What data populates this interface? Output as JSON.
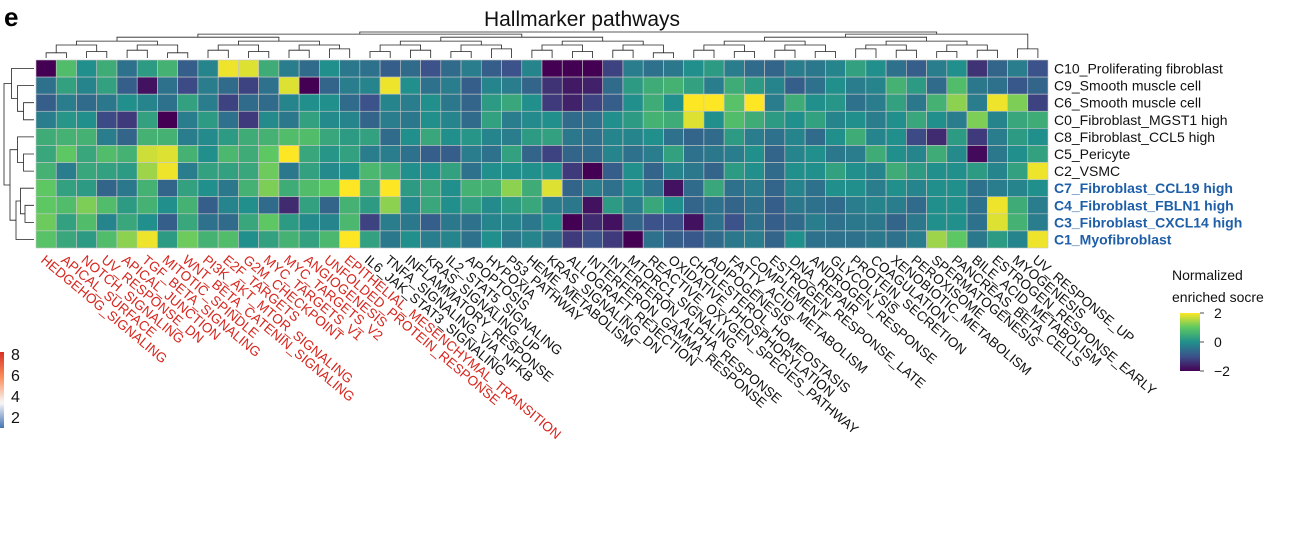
{
  "panel_letter": "e",
  "chart_data": {
    "type": "heatmap",
    "title": "Hallmarker pathways",
    "rows": [
      {
        "label": "C10_Proliferating fibroblast",
        "highlight": false
      },
      {
        "label": "C9_Smooth muscle cell",
        "highlight": false
      },
      {
        "label": "C6_Smooth muscle cell",
        "highlight": false
      },
      {
        "label": "C0_Fibroblast_MGST1 high",
        "highlight": false
      },
      {
        "label": "C8_Fibroblast_CCL5 high",
        "highlight": false
      },
      {
        "label": "C5_Pericyte",
        "highlight": false
      },
      {
        "label": "C2_VSMC",
        "highlight": false
      },
      {
        "label": "C7_Fibroblast_CCL19 high",
        "highlight": true
      },
      {
        "label": "C4_Fibroblast_FBLN1 high",
        "highlight": true
      },
      {
        "label": "C3_Fibroblast_CXCL14 high",
        "highlight": true
      },
      {
        "label": "C1_Myofibroblast",
        "highlight": true
      }
    ],
    "columns": [
      {
        "label": "HEDGEHOG_SIGNALING",
        "highlight": true
      },
      {
        "label": "APICAL_SURFACE",
        "highlight": true
      },
      {
        "label": "NOTCH_SIGNALING",
        "highlight": true
      },
      {
        "label": "UV_RESPONSE_DN",
        "highlight": true
      },
      {
        "label": "APICAL_JUNCTION",
        "highlight": true
      },
      {
        "label": "TGF_BETA_SIGNALING",
        "highlight": true
      },
      {
        "label": "MITOTIC_SPINDLE",
        "highlight": true
      },
      {
        "label": "WNT_BETA_CATENIN_SIGNALING",
        "highlight": true
      },
      {
        "label": "PI3K_AKT_MTOR_SIGNALING",
        "highlight": true
      },
      {
        "label": "E2F_TARGETS",
        "highlight": true
      },
      {
        "label": "G2M_CHECKPOINT",
        "highlight": true
      },
      {
        "label": "MYC_TARGETS_V1",
        "highlight": true
      },
      {
        "label": "MYC_TARGETS_V2",
        "highlight": true
      },
      {
        "label": "ANGIOGENESIS",
        "highlight": true
      },
      {
        "label": "UNFOLDED_PROTEIN_RESPONSE",
        "highlight": true
      },
      {
        "label": "EPITHELIAL_MESENCHYMAL_TRANSITION",
        "highlight": true
      },
      {
        "label": "IL6_JAK_STAT3_SIGNALING",
        "highlight": false
      },
      {
        "label": "TNFA_SIGNALING_VIA_NFKB",
        "highlight": false
      },
      {
        "label": "INFLAMMATORY_RESPONSE",
        "highlight": false
      },
      {
        "label": "KRAS_SIGNALING_UP",
        "highlight": false
      },
      {
        "label": "IL2_STAT5_SIGNALING",
        "highlight": false
      },
      {
        "label": "APOPTOSIS",
        "highlight": false
      },
      {
        "label": "HYPOXIA",
        "highlight": false
      },
      {
        "label": "P53_PATHWAY",
        "highlight": false
      },
      {
        "label": "HEME_METABOLISM",
        "highlight": false
      },
      {
        "label": "KRAS_SIGNALING_DN",
        "highlight": false
      },
      {
        "label": "ALLOGRAFT_REJECTION",
        "highlight": false
      },
      {
        "label": "INTERFERON_GAMMA_RESPONSE",
        "highlight": false
      },
      {
        "label": "INTERFERON_ALPHA_RESPONSE",
        "highlight": false
      },
      {
        "label": "MTORC1_SIGNALING",
        "highlight": false
      },
      {
        "label": "REACTIVE_OXYGEN_SPECIES_PATHWAY",
        "highlight": false
      },
      {
        "label": "OXIDATIVE_PHOSPHORYLATION",
        "highlight": false
      },
      {
        "label": "CHOLESTEROL_HOMEOSTASIS",
        "highlight": false
      },
      {
        "label": "ADIPOGENESIS",
        "highlight": false
      },
      {
        "label": "FATTY_ACID_METABOLISM",
        "highlight": false
      },
      {
        "label": "COMPLEMENT",
        "highlight": false
      },
      {
        "label": "ESTROGEN_RESPONSE_LATE",
        "highlight": false
      },
      {
        "label": "DNA_REPAIR",
        "highlight": false
      },
      {
        "label": "ANDROGEN_RESPONSE",
        "highlight": false
      },
      {
        "label": "GLYCOLYSIS",
        "highlight": false
      },
      {
        "label": "PROTEIN_SECRETION",
        "highlight": false
      },
      {
        "label": "COAGULATION",
        "highlight": false
      },
      {
        "label": "XENOBIOTIC_METABOLISM",
        "highlight": false
      },
      {
        "label": "PEROXISOME",
        "highlight": false
      },
      {
        "label": "SPERMATOGENESIS",
        "highlight": false
      },
      {
        "label": "PANCREAS_BETA_CELLS",
        "highlight": false
      },
      {
        "label": "BILE_ACID_METABOLISM",
        "highlight": false
      },
      {
        "label": "ESTROGEN_RESPONSE_EARLY",
        "highlight": false
      },
      {
        "label": "MYOGENESIS",
        "highlight": false
      },
      {
        "label": "UV_RESPONSE_UP",
        "highlight": false
      }
    ],
    "values": [
      [
        -2.0,
        0.8,
        0.0,
        0.5,
        -0.5,
        0.2,
        0.6,
        -0.8,
        -0.2,
        1.9,
        1.8,
        0.5,
        -0.3,
        -0.6,
        0.0,
        -0.4,
        -0.5,
        -0.8,
        -0.6,
        -1.0,
        -0.6,
        -0.3,
        -0.8,
        -1.0,
        -0.2,
        -2.0,
        -2.2,
        -2.1,
        -1.2,
        -0.3,
        -0.5,
        -0.4,
        0.0,
        0.2,
        -0.3,
        -0.6,
        -0.7,
        -0.3,
        -0.4,
        -0.2,
        0.3,
        0.0,
        -0.5,
        -0.8,
        -0.3,
        0.0,
        -1.4,
        -0.7,
        -0.3,
        -1.0
      ],
      [
        -0.5,
        0.3,
        -0.2,
        0.3,
        -0.8,
        -1.8,
        -0.5,
        -1.1,
        -0.3,
        -0.6,
        -1.2,
        -0.5,
        1.8,
        -2.0,
        -0.7,
        -0.3,
        -0.2,
        1.9,
        0.0,
        -0.5,
        -0.3,
        -0.8,
        -0.2,
        -0.3,
        -0.7,
        -1.4,
        -1.7,
        -1.6,
        -0.6,
        0.2,
        0.5,
        0.6,
        0.3,
        -0.3,
        0.5,
        0.2,
        -0.2,
        -0.8,
        -0.5,
        0.0,
        -0.3,
        -0.2,
        0.6,
        0.2,
        -0.6,
        0.8,
        -0.4,
        -0.5,
        -0.9,
        -0.7
      ],
      [
        -0.8,
        -0.3,
        -0.6,
        -0.4,
        0.0,
        -0.2,
        -0.5,
        0.3,
        -0.3,
        -1.2,
        -0.6,
        -0.6,
        -0.2,
        0.0,
        0.0,
        -0.6,
        -1.0,
        -0.2,
        -0.3,
        0.0,
        -0.4,
        -0.7,
        0.2,
        0.4,
        0.0,
        -1.3,
        -1.6,
        -1.2,
        -0.8,
        0.0,
        0.5,
        0.0,
        2.0,
        2.0,
        0.9,
        2.0,
        -0.3,
        0.5,
        0.0,
        0.1,
        -0.5,
        -0.3,
        0.3,
        -0.4,
        0.6,
        1.3,
        -0.3,
        1.9,
        1.2,
        -1.2
      ],
      [
        -0.3,
        0.1,
        0.0,
        -1.1,
        -1.3,
        0.3,
        -2.0,
        -0.3,
        0.2,
        -0.5,
        -1.3,
        -0.1,
        -0.4,
        0.3,
        -0.1,
        -0.2,
        -0.7,
        -0.3,
        -0.4,
        0.0,
        -0.2,
        -0.6,
        0.3,
        -0.3,
        -0.1,
        0.0,
        -0.6,
        -0.5,
        0.0,
        0.2,
        0.6,
        0.5,
        1.8,
        0.0,
        0.8,
        0.5,
        0.2,
        0.0,
        0.3,
        -0.2,
        0.0,
        -0.3,
        0.0,
        0.4,
        0.0,
        -0.3,
        1.2,
        -0.2,
        0.4,
        0.5
      ],
      [
        0.5,
        0.6,
        0.6,
        -0.3,
        -0.7,
        0.6,
        0.6,
        -0.3,
        -0.1,
        0.2,
        0.5,
        0.6,
        0.8,
        0.8,
        0.4,
        0.2,
        0.3,
        -0.6,
        0.0,
        0.4,
        0.0,
        0.1,
        -0.2,
        -0.3,
        0.2,
        0.3,
        -0.4,
        -0.5,
        -0.2,
        -0.2,
        0.0,
        -0.5,
        -0.7,
        -0.6,
        0.2,
        -0.3,
        -0.5,
        -0.2,
        -0.6,
        0.0,
        0.5,
        -0.2,
        0.0,
        -1.1,
        -1.5,
        0.2,
        -1.3,
        -0.3,
        0.2,
        0.0
      ],
      [
        0.4,
        1.0,
        0.4,
        0.8,
        0.6,
        1.7,
        1.8,
        0.6,
        0.0,
        0.7,
        0.5,
        1.0,
        2.0,
        0.4,
        0.1,
        0.3,
        -0.3,
        -0.3,
        -0.5,
        -0.8,
        -0.8,
        -0.3,
        -0.5,
        0.3,
        -0.7,
        -1.2,
        -0.7,
        -0.6,
        -0.2,
        -0.5,
        -0.3,
        0.3,
        -0.5,
        -0.4,
        -0.3,
        0.0,
        -0.7,
        -0.2,
        0.0,
        -0.4,
        -0.3,
        0.5,
        0.0,
        -0.2,
        0.5,
        -0.1,
        -1.9,
        -0.4,
        0.0,
        0.3
      ],
      [
        0.6,
        -0.3,
        0.4,
        0.3,
        0.2,
        1.4,
        1.9,
        -0.3,
        0.3,
        0.3,
        0.4,
        1.1,
        -0.4,
        0.3,
        -0.1,
        0.0,
        0.7,
        0.5,
        0.0,
        0.0,
        0.3,
        -0.5,
        0.0,
        0.0,
        0.0,
        0.0,
        -1.3,
        -2.0,
        -0.8,
        0.0,
        -0.7,
        -0.2,
        -0.4,
        -0.7,
        0.2,
        0.0,
        -0.6,
        0.0,
        0.0,
        0.3,
        0.0,
        -0.2,
        0.5,
        0.2,
        0.0,
        0.0,
        0.2,
        -0.2,
        0.3,
        1.9
      ],
      [
        1.0,
        0.3,
        0.2,
        -0.7,
        -0.4,
        0.6,
        -0.7,
        0.3,
        0.0,
        -0.4,
        0.6,
        1.2,
        0.5,
        0.8,
        1.0,
        2.0,
        0.6,
        2.0,
        0.2,
        0.4,
        0.0,
        0.6,
        0.6,
        1.3,
        0.5,
        1.8,
        -0.7,
        -0.3,
        -0.5,
        0.0,
        -0.5,
        -1.8,
        -0.6,
        0.4,
        -0.5,
        -0.3,
        -0.7,
        -0.2,
        -0.5,
        0.0,
        0.0,
        -0.3,
        0.0,
        -0.2,
        0.0,
        0.0,
        -0.5,
        -0.3,
        -0.2,
        0.0
      ],
      [
        1.0,
        0.8,
        1.2,
        0.8,
        0.2,
        0.6,
        0.0,
        0.6,
        -0.8,
        -0.2,
        0.0,
        -0.6,
        -1.5,
        0.3,
        -0.7,
        0.6,
        0.2,
        1.3,
        -0.1,
        0.4,
        0.0,
        0.3,
        -0.1,
        0.2,
        0.4,
        -0.3,
        -0.4,
        -1.8,
        0.2,
        -0.3,
        0.4,
        0.0,
        -0.7,
        -0.5,
        -0.7,
        -0.5,
        -0.8,
        -0.4,
        -0.5,
        -0.6,
        -0.3,
        -0.2,
        -0.3,
        -0.6,
        0.0,
        0.0,
        -0.5,
        1.9,
        0.5,
        -0.3
      ],
      [
        1.1,
        0.3,
        0.8,
        -0.2,
        0.4,
        0.0,
        -0.8,
        0.4,
        -0.5,
        -0.6,
        0.4,
        1.0,
        0.2,
        -0.1,
        -0.2,
        0.7,
        -1.2,
        -0.3,
        -0.4,
        -0.8,
        -0.4,
        -0.5,
        -0.2,
        -0.2,
        -0.4,
        0.0,
        -2.0,
        -1.5,
        -1.8,
        -0.7,
        -1.0,
        -1.0,
        -1.8,
        -0.5,
        -1.0,
        -0.5,
        -0.8,
        -0.6,
        -0.3,
        -0.5,
        -0.4,
        -0.4,
        -0.7,
        -0.4,
        0.0,
        0.0,
        -0.5,
        1.8,
        0.6,
        -0.3
      ],
      [
        0.9,
        0.4,
        0.2,
        0.8,
        1.3,
        1.9,
        0.2,
        1.1,
        0.6,
        0.8,
        0.0,
        0.3,
        0.6,
        0.3,
        0.7,
        2.0,
        0.3,
        -0.4,
        0.0,
        -0.3,
        -0.2,
        -0.5,
        0.0,
        -0.4,
        -0.2,
        -0.5,
        -1.3,
        -1.0,
        -1.3,
        -2.0,
        -0.5,
        -0.8,
        -0.9,
        -0.6,
        -0.4,
        -0.3,
        -0.7,
        0.0,
        -0.5,
        -0.5,
        -0.5,
        -0.4,
        -0.5,
        -0.3,
        1.4,
        1.0,
        -0.4,
        0.2,
        -0.2,
        1.9
      ]
    ],
    "color_scale": {
      "name": "viridis",
      "stops": [
        "#440154",
        "#3b528b",
        "#21908c",
        "#5dc863",
        "#fde725"
      ],
      "domain": [
        -2,
        2
      ]
    },
    "legend": {
      "title_line1": "Normalized",
      "title_line2": "enriched socre",
      "ticks": [
        "2",
        "0",
        "−2"
      ],
      "position": "right"
    },
    "side_legend": {
      "ticks": [
        "8",
        "6",
        "4",
        "2"
      ],
      "colors": [
        "#d73027",
        "#fc8d59",
        "#f7f7f7",
        "#4575b4"
      ]
    },
    "highlight_colors": {
      "row": "#1f5fa8",
      "column": "#d7261e"
    }
  }
}
